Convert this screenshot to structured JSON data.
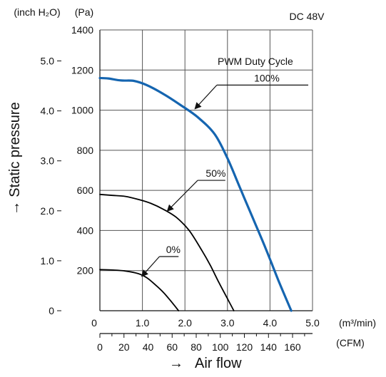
{
  "chart_data": {
    "type": "line",
    "title": "DC 48V",
    "annotation_title": "PWM Duty Cycle",
    "ylabel": "Static pressure",
    "xlabel": "Air flow",
    "y_axis_pa": {
      "unit": "(Pa)",
      "range": [
        0,
        1400
      ],
      "ticks": [
        "0",
        "200",
        "400",
        "600",
        "800",
        "1000",
        "1200",
        "1400"
      ]
    },
    "y_axis_inh2o": {
      "unit": "(inch H₂O)",
      "range": [
        0,
        5.62
      ],
      "ticks": [
        "0",
        "1.0",
        "2.0",
        "3.0",
        "4.0",
        "5.0"
      ]
    },
    "x_axis_m3min": {
      "unit": "(m³/min)",
      "range": [
        0,
        5.0
      ],
      "ticks": [
        "0",
        "1.0",
        "2.0",
        "3.0",
        "4.0",
        "5.0"
      ]
    },
    "x_axis_cfm": {
      "unit": "(CFM)",
      "range": [
        0,
        176.6
      ],
      "ticks": [
        "0",
        "20",
        "40",
        "60",
        "80",
        "100",
        "120",
        "140",
        "160"
      ]
    },
    "grid": true,
    "series": [
      {
        "name": "100%",
        "color": "#1565b0",
        "x": [
          0.0,
          0.2,
          0.5,
          0.8,
          1.1,
          1.5,
          1.9,
          2.3,
          2.7,
          3.0,
          3.3,
          3.6,
          3.9,
          4.2,
          4.5
        ],
        "y": [
          1160,
          1158,
          1148,
          1146,
          1125,
          1080,
          1025,
          965,
          880,
          760,
          610,
          460,
          310,
          150,
          0
        ]
      },
      {
        "name": "50%",
        "color": "#000000",
        "x": [
          0.0,
          0.3,
          0.6,
          0.9,
          1.2,
          1.5,
          1.8,
          2.1,
          2.4,
          2.6,
          2.8,
          3.0,
          3.15
        ],
        "y": [
          580,
          575,
          570,
          555,
          535,
          505,
          465,
          400,
          300,
          225,
          140,
          60,
          0
        ]
      },
      {
        "name": "0%",
        "color": "#000000",
        "x": [
          0.0,
          0.3,
          0.6,
          0.9,
          1.1,
          1.3,
          1.5,
          1.7,
          1.85
        ],
        "y": [
          205,
          203,
          198,
          185,
          165,
          130,
          90,
          40,
          0
        ]
      }
    ],
    "annotations": [
      {
        "text": "100%",
        "target": "100%",
        "anchor": [
          2.25,
          1010
        ],
        "label_x": 2.75,
        "line_end_x": 4.9,
        "line_y": 1125
      },
      {
        "text": "50%",
        "target": "50%",
        "anchor": [
          1.6,
          500
        ],
        "label_x": 2.3,
        "line_end_x": 2.95,
        "line_y": 650
      },
      {
        "text": "0%",
        "target": "0%",
        "anchor": [
          1.0,
          175
        ],
        "label_x": 1.4,
        "line_end_x": 1.85,
        "line_y": 270
      }
    ]
  }
}
